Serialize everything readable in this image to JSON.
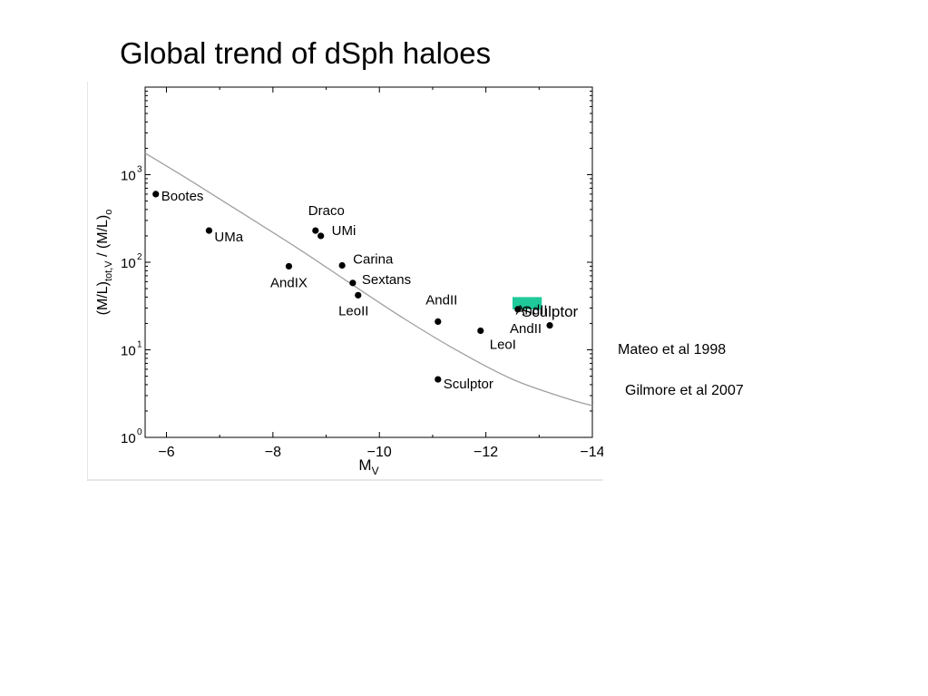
{
  "slide": {
    "title": "Global trend of dSph haloes",
    "references": [
      "Mateo et al 1998",
      "Gilmore et al 2007"
    ]
  },
  "colors": {
    "points": "#000000",
    "trend_curve": "#a0a0a0",
    "highlight": "#1fc99a",
    "axes": "#000000"
  },
  "chart_data": {
    "type": "scatter",
    "title": "",
    "xlabel": "M_V",
    "ylabel": "(M/L)_tot,V / (M/L)_o",
    "xlim": [
      -5.6,
      -14
    ],
    "ylim": [
      1,
      10000
    ],
    "yscale": "log",
    "x_inverted": true,
    "xticks": [
      -6,
      -8,
      -10,
      -12,
      -14
    ],
    "xtick_labels": [
      "−6",
      "−8",
      "−10",
      "−12",
      "−14"
    ],
    "yticks": [
      1,
      10,
      100,
      1000
    ],
    "ytick_labels": [
      "10",
      "10",
      "10",
      "10"
    ],
    "ytick_exponents": [
      "0",
      "1",
      "2",
      "3"
    ],
    "grid": false,
    "points": [
      {
        "label": "Bootes",
        "x": -5.8,
        "y": 600
      },
      {
        "label": "UMa",
        "x": -6.8,
        "y": 230
      },
      {
        "label": "AndIX",
        "x": -8.3,
        "y": 90
      },
      {
        "label": "Draco",
        "x": -8.8,
        "y": 230
      },
      {
        "label": "UMi",
        "x": -8.9,
        "y": 200
      },
      {
        "label": "Carina",
        "x": -9.3,
        "y": 92
      },
      {
        "label": "Sextans",
        "x": -9.5,
        "y": 58
      },
      {
        "label": "LeoII",
        "x": -9.6,
        "y": 42
      },
      {
        "label": "AndII",
        "x": -11.1,
        "y": 21
      },
      {
        "label": "Sculptor",
        "x": -11.1,
        "y": 4.6
      },
      {
        "label": "LeoI",
        "x": -11.9,
        "y": 16.5
      },
      {
        "label": "Sculptor",
        "x": -12.6,
        "y": 29
      },
      {
        "label": "AndII",
        "x": -13.2,
        "y": 19
      }
    ],
    "trend_curve": {
      "x": [
        -5.6,
        -6.5,
        -7.5,
        -8.5,
        -9.5,
        -10.5,
        -11.5,
        -12.5,
        -13.5,
        -14
      ],
      "y": [
        1760,
        820,
        340,
        140,
        55,
        22,
        9.5,
        4.6,
        2.8,
        2.3
      ]
    },
    "annotations": [
      {
        "text": "AndII",
        "x": -12.45,
        "y": 15.5
      }
    ]
  }
}
